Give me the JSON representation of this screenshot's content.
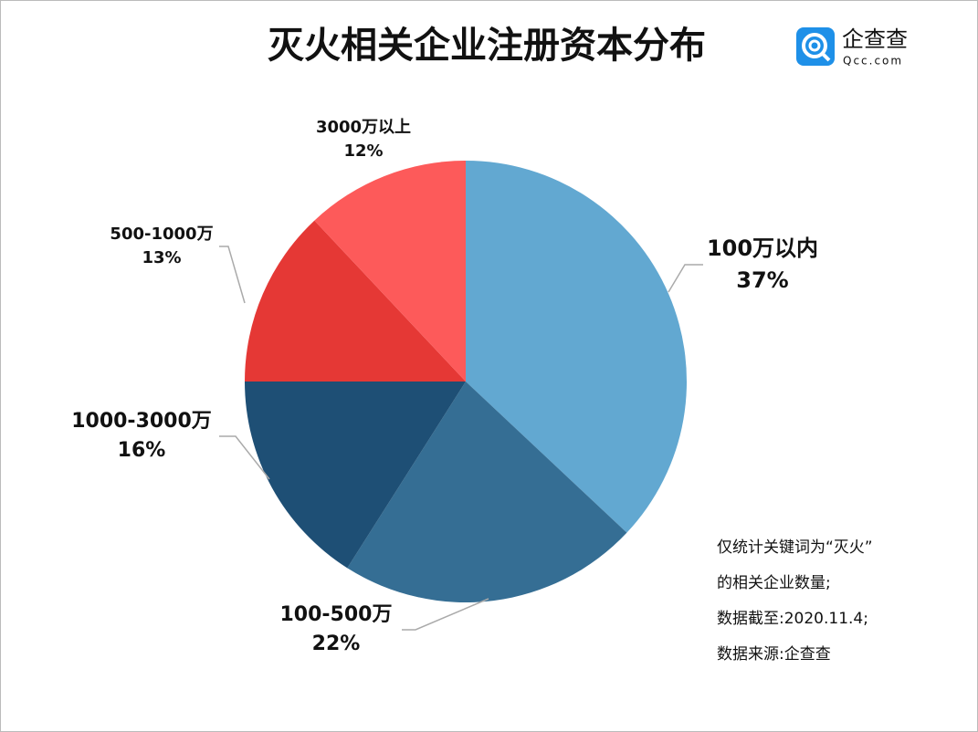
{
  "chart_data": {
    "type": "pie",
    "title": "灭火相关企业注册资本分布",
    "categories": [
      "100万以内",
      "100-500万",
      "1000-3000万",
      "500-1000万",
      "3000万以上"
    ],
    "values": [
      37,
      22,
      16,
      13,
      12
    ],
    "value_labels": [
      "37%",
      "22%",
      "16%",
      "13%",
      "12%"
    ],
    "colors": [
      "#62a8d1",
      "#356e94",
      "#1e4f75",
      "#e53835",
      "#fd5a5a"
    ],
    "notes": [
      "仅统计关键词为“灭火”",
      "的相关企业数量;",
      "数据截至:2020.11.4;",
      "数据来源:企查查"
    ],
    "logo": {
      "name": "企查查",
      "url": "Qcc.com"
    }
  }
}
